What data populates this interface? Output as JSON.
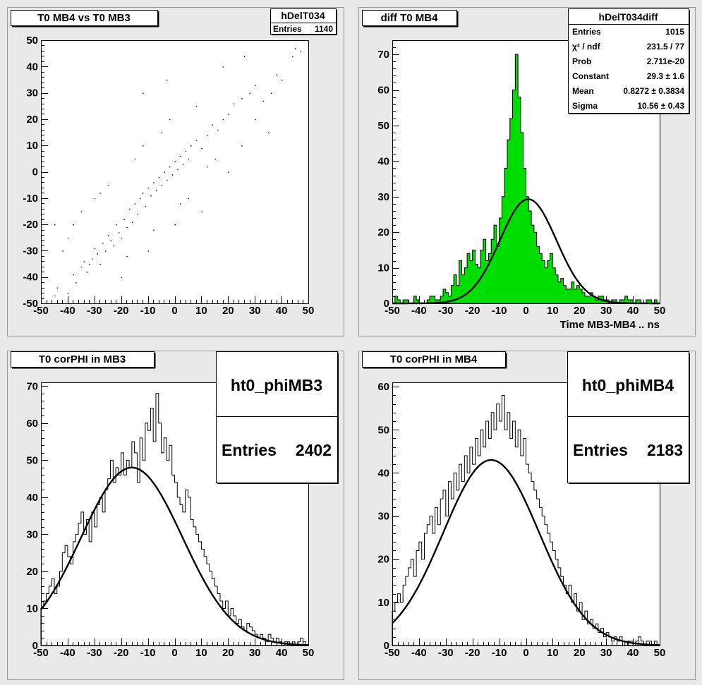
{
  "chart_data": [
    {
      "type": "scatter",
      "title": "T0 MB4 vs T0 MB3",
      "xlabel": "",
      "ylabel": "",
      "xlim": [
        -50,
        50
      ],
      "ylim": [
        -50,
        50
      ],
      "xticks": [
        "-50",
        "-40",
        "-30",
        "-20",
        "-10",
        "0",
        "10",
        "20",
        "30",
        "40",
        "50"
      ],
      "yticks": [
        "-50",
        "-40",
        "-30",
        "-20",
        "-10",
        "0",
        "10",
        "20",
        "30",
        "40",
        "50"
      ],
      "stats": {
        "name": "hDelT034",
        "rows": [
          {
            "label": "Entries",
            "value": "1140"
          }
        ]
      },
      "correlation_slope": 0.9,
      "points": [
        [
          -45,
          -47
        ],
        [
          -44,
          -44
        ],
        [
          -40,
          -46
        ],
        [
          -38,
          -39
        ],
        [
          -37,
          -42
        ],
        [
          -35,
          -36
        ],
        [
          -34,
          -34
        ],
        [
          -33,
          -38
        ],
        [
          -32,
          -35
        ],
        [
          -31,
          -33
        ],
        [
          -30,
          -29
        ],
        [
          -29,
          -31
        ],
        [
          -28,
          -35
        ],
        [
          -27,
          -27
        ],
        [
          -26,
          -30
        ],
        [
          -25,
          -24
        ],
        [
          -24,
          -26
        ],
        [
          -23,
          -28
        ],
        [
          -22,
          -20
        ],
        [
          -21,
          -23
        ],
        [
          -20,
          -25
        ],
        [
          -19,
          -18
        ],
        [
          -18,
          -21
        ],
        [
          -17,
          -14
        ],
        [
          -16,
          -19
        ],
        [
          -15,
          -12
        ],
        [
          -14,
          -16
        ],
        [
          -13,
          -10
        ],
        [
          -12,
          -8
        ],
        [
          -11,
          -13
        ],
        [
          -10,
          -6
        ],
        [
          -9,
          -9
        ],
        [
          -8,
          -4
        ],
        [
          -7,
          -7
        ],
        [
          -6,
          -2
        ],
        [
          -5,
          -5
        ],
        [
          -4,
          0
        ],
        [
          -3,
          -3
        ],
        [
          -2,
          2
        ],
        [
          -1,
          -1
        ],
        [
          0,
          4
        ],
        [
          1,
          1
        ],
        [
          2,
          6
        ],
        [
          3,
          3
        ],
        [
          4,
          8
        ],
        [
          5,
          5
        ],
        [
          6,
          10
        ],
        [
          8,
          12
        ],
        [
          10,
          9
        ],
        [
          12,
          14
        ],
        [
          14,
          18
        ],
        [
          16,
          16
        ],
        [
          18,
          20
        ],
        [
          20,
          22
        ],
        [
          22,
          26
        ],
        [
          25,
          28
        ],
        [
          28,
          30
        ],
        [
          30,
          33
        ],
        [
          33,
          27
        ],
        [
          36,
          30
        ],
        [
          38,
          37
        ],
        [
          40,
          35
        ],
        [
          44,
          44
        ],
        [
          45,
          47
        ],
        [
          47,
          46
        ],
        [
          -42,
          -30
        ],
        [
          -38,
          -20
        ],
        [
          -30,
          -10
        ],
        [
          -25,
          -5
        ],
        [
          -15,
          5
        ],
        [
          -5,
          15
        ],
        [
          5,
          -10
        ],
        [
          15,
          5
        ],
        [
          25,
          10
        ],
        [
          -20,
          -40
        ],
        [
          -10,
          -30
        ],
        [
          0,
          -20
        ],
        [
          10,
          -15
        ],
        [
          20,
          0
        ],
        [
          -35,
          -15
        ],
        [
          -28,
          -8
        ],
        [
          -18,
          -32
        ],
        [
          -8,
          -22
        ],
        [
          2,
          -12
        ],
        [
          12,
          2
        ],
        [
          -12,
          10
        ],
        [
          -2,
          20
        ],
        [
          8,
          25
        ],
        [
          -45,
          -20
        ],
        [
          -48,
          -10
        ],
        [
          -40,
          -25
        ],
        [
          30,
          20
        ],
        [
          35,
          15
        ],
        [
          -3,
          35
        ],
        [
          -12,
          30
        ],
        [
          18,
          40
        ],
        [
          26,
          44
        ]
      ]
    },
    {
      "type": "bar",
      "title": "diff T0 MB4",
      "xlabel": "Time MB3-MB4  ..  ns",
      "ylabel": "",
      "xlim": [
        -50,
        50
      ],
      "ylim": [
        0,
        74
      ],
      "xticks": [
        "-50",
        "-40",
        "-30",
        "-20",
        "-10",
        "0",
        "10",
        "20",
        "30",
        "40",
        "50"
      ],
      "yticks": [
        "0",
        "10",
        "20",
        "30",
        "40",
        "50",
        "60",
        "70"
      ],
      "fill_color": "#00dd00",
      "bin_start": -50,
      "bin_width": 1,
      "values": [
        0,
        2,
        1,
        0,
        1,
        1,
        0,
        0,
        2,
        1,
        0,
        0,
        0,
        1,
        2,
        2,
        1,
        1,
        2,
        4,
        3,
        2,
        5,
        8,
        5,
        12,
        8,
        10,
        14,
        12,
        15,
        11,
        10,
        15,
        18,
        12,
        14,
        18,
        22,
        16,
        24,
        30,
        38,
        46,
        52,
        60,
        70,
        58,
        48,
        38,
        30,
        26,
        22,
        20,
        16,
        14,
        12,
        10,
        12,
        14,
        10,
        8,
        6,
        7,
        5,
        4,
        4,
        6,
        4,
        5,
        4,
        3,
        2,
        2,
        3,
        2,
        1,
        2,
        2,
        1,
        1,
        0,
        1,
        1,
        0,
        1,
        1,
        2,
        1,
        1,
        0,
        1,
        1,
        0,
        0,
        1,
        1,
        0,
        1,
        0
      ],
      "fit": {
        "type": "gaussian",
        "constant": 29.3,
        "mean": 0.8272,
        "sigma": 10.56
      },
      "stats": {
        "name": "hDelT034diff",
        "rows": [
          {
            "label": "Entries",
            "value": "1015"
          },
          {
            "label": "χ² / ndf",
            "value": "231.5 / 77"
          },
          {
            "label": "Prob",
            "value": "2.711e-20"
          },
          {
            "label": "Constant",
            "value": "29.3 ± 1.6"
          },
          {
            "label": "Mean",
            "value": "0.8272 ± 0.3834"
          },
          {
            "label": "Sigma",
            "value": "10.56 ± 0.43"
          }
        ]
      }
    },
    {
      "type": "bar",
      "title": "T0 corPHI in MB3",
      "xlabel": "",
      "ylabel": "",
      "xlim": [
        -50,
        50
      ],
      "ylim": [
        0,
        71
      ],
      "xticks": [
        "-50",
        "-40",
        "-30",
        "-20",
        "-10",
        "0",
        "10",
        "20",
        "30",
        "40",
        "50"
      ],
      "yticks": [
        "0",
        "10",
        "20",
        "30",
        "40",
        "50",
        "60",
        "70"
      ],
      "fill_color": "none",
      "bin_start": -50,
      "bin_width": 1,
      "values": [
        10,
        12,
        14,
        16,
        18,
        14,
        16,
        20,
        25,
        27,
        24,
        22,
        28,
        30,
        33,
        36,
        30,
        34,
        28,
        36,
        32,
        38,
        40,
        36,
        42,
        45,
        50,
        44,
        48,
        46,
        52,
        46,
        50,
        48,
        55,
        52,
        44,
        56,
        50,
        60,
        58,
        64,
        55,
        68,
        60,
        52,
        56,
        50,
        54,
        46,
        44,
        40,
        38,
        36,
        42,
        40,
        34,
        32,
        30,
        28,
        26,
        24,
        22,
        20,
        18,
        16,
        14,
        12,
        10,
        12,
        8,
        10,
        8,
        6,
        7,
        5,
        4,
        6,
        5,
        4,
        3,
        2,
        3,
        2,
        1,
        3,
        2,
        1,
        2,
        1,
        0,
        1,
        1,
        0,
        1,
        0,
        1,
        2,
        1,
        0
      ],
      "fit": {
        "type": "gaussian",
        "constant": 48,
        "mean": -16,
        "sigma": 19
      },
      "stats": {
        "name": "ht0_phiMB3",
        "rows": [
          {
            "label": "Entries",
            "value": "2402"
          }
        ]
      }
    },
    {
      "type": "bar",
      "title": "T0 corPHI in MB4",
      "xlabel": "",
      "ylabel": "",
      "xlim": [
        -50,
        50
      ],
      "ylim": [
        0,
        61
      ],
      "xticks": [
        "-50",
        "-40",
        "-30",
        "-20",
        "-10",
        "0",
        "10",
        "20",
        "30",
        "40",
        "50"
      ],
      "yticks": [
        "0",
        "10",
        "20",
        "30",
        "40",
        "50",
        "60"
      ],
      "fill_color": "none",
      "bin_start": -50,
      "bin_width": 1,
      "values": [
        8,
        10,
        12,
        10,
        14,
        16,
        18,
        20,
        16,
        22,
        24,
        20,
        26,
        28,
        30,
        26,
        32,
        28,
        34,
        36,
        30,
        38,
        34,
        40,
        36,
        42,
        38,
        44,
        40,
        46,
        42,
        48,
        44,
        50,
        46,
        52,
        48,
        54,
        50,
        56,
        52,
        58,
        50,
        54,
        48,
        52,
        46,
        50,
        44,
        48,
        42,
        40,
        38,
        36,
        34,
        32,
        30,
        28,
        26,
        24,
        22,
        20,
        18,
        16,
        14,
        12,
        14,
        10,
        12,
        8,
        10,
        6,
        8,
        5,
        6,
        4,
        5,
        3,
        4,
        2,
        3,
        2,
        1,
        2,
        1,
        2,
        1,
        0,
        1,
        1,
        0,
        1,
        2,
        1,
        0,
        1,
        1,
        0,
        1,
        0
      ],
      "fit": {
        "type": "gaussian",
        "constant": 43,
        "mean": -13,
        "sigma": 18
      },
      "stats": {
        "name": "ht0_phiMB4",
        "rows": [
          {
            "label": "Entries",
            "value": "2183"
          }
        ]
      }
    }
  ]
}
